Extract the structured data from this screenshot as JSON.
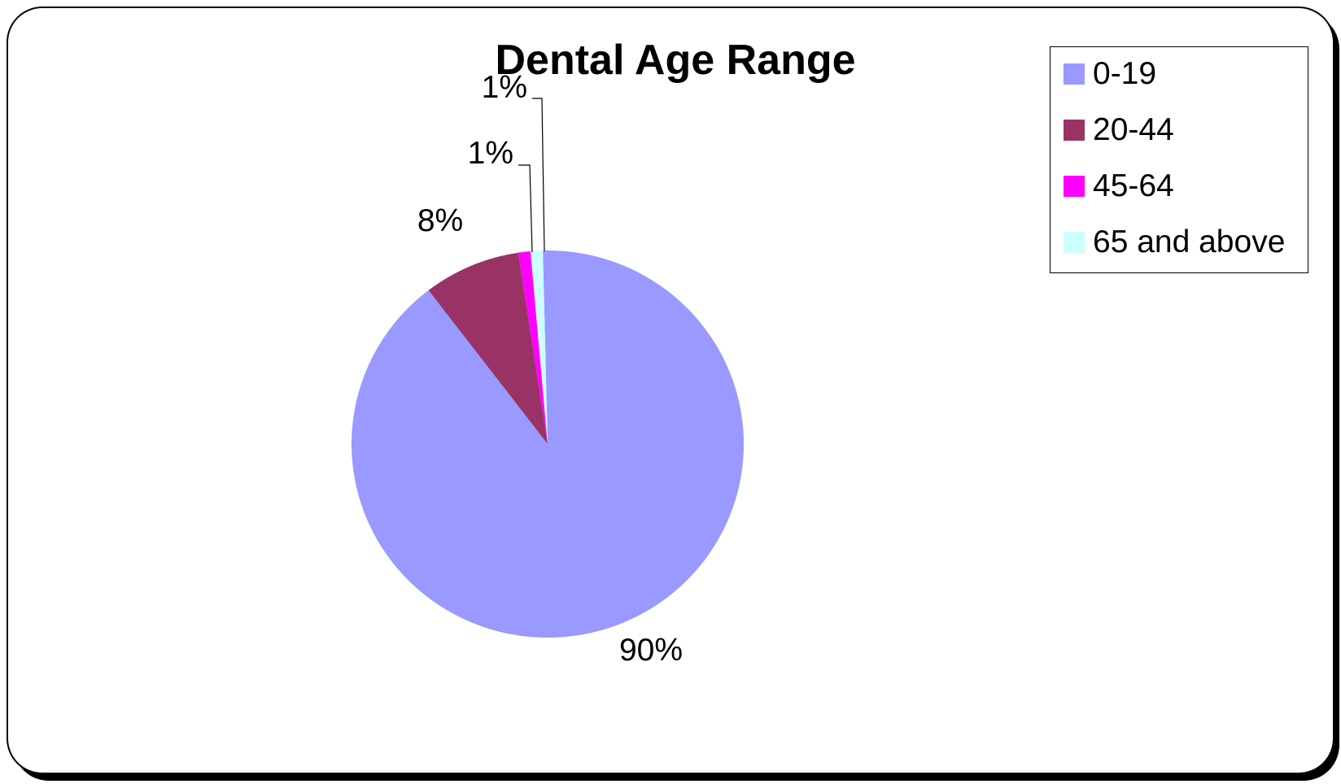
{
  "chart_data": {
    "type": "pie",
    "title": "Dental Age Range",
    "slices": [
      {
        "label": "0-19",
        "value": 90,
        "value_label": "90%",
        "color": "#9999FF"
      },
      {
        "label": "20-44",
        "value": 8,
        "value_label": "8%",
        "color": "#993366"
      },
      {
        "label": "45-64",
        "value": 1,
        "value_label": "1%",
        "color": "#FF00FF"
      },
      {
        "label": "65 and above",
        "value": 1,
        "value_label": "1%",
        "color": "#CCFFFF"
      }
    ],
    "legend_position": "top-right"
  }
}
